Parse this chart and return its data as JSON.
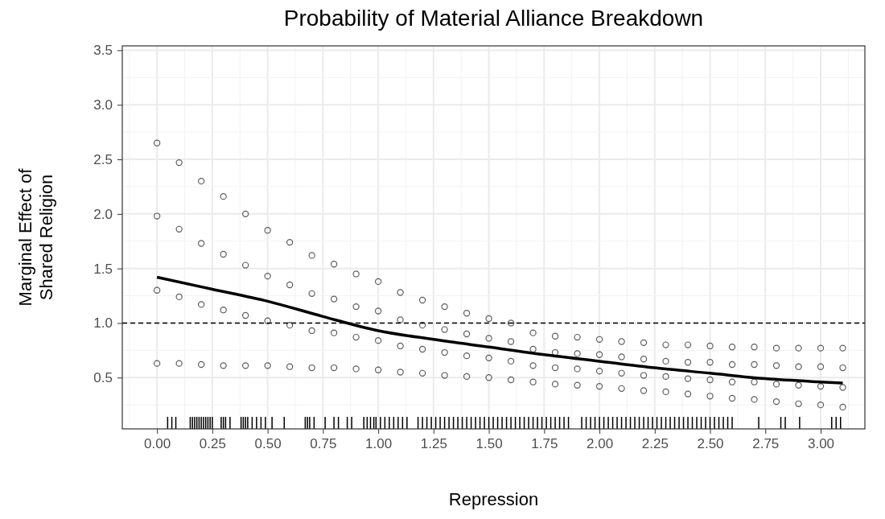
{
  "chart_data": {
    "type": "scatter",
    "title": "Probability of Material Alliance Breakdown",
    "xlabel": "Repression",
    "ylabel": "Marginal Effect of\nShared Religion",
    "xlim": [
      -0.157,
      3.2
    ],
    "ylim": [
      0.03,
      3.54
    ],
    "xticks": [
      {
        "value": 0,
        "label": "0.00"
      },
      0.25,
      {
        "value": 0.5,
        "label": "0.50"
      },
      0.75,
      {
        "value": 1,
        "label": "1.00"
      },
      1.25,
      {
        "value": 1.5,
        "label": "1.50"
      },
      1.75,
      {
        "value": 2,
        "label": "2.00"
      },
      2.25,
      {
        "value": 2.5,
        "label": "2.50"
      },
      2.75,
      {
        "value": 3,
        "label": "3.00"
      }
    ],
    "yticks": [
      0.5,
      {
        "value": 1,
        "label": "1.0"
      },
      1.5,
      {
        "value": 2,
        "label": "2.0"
      },
      2.5,
      {
        "value": 3,
        "label": "3.0"
      },
      3.5
    ],
    "grid": true,
    "marker": "circle",
    "ref_lines": [
      {
        "axis": "y",
        "value": 1,
        "line_style": "dashed",
        "color": "#000000"
      }
    ],
    "series": [
      {
        "color": "#333333",
        "x": [
          0,
          0.1,
          0.2,
          0.3,
          0.4,
          0.5,
          0.6,
          0.7,
          0.8,
          0.9,
          1,
          1.1,
          1.2,
          1.3,
          1.4,
          1.5,
          1.6,
          1.7,
          1.8,
          1.9,
          2,
          2.1,
          2.2,
          2.3,
          2.4,
          2.5,
          2.6,
          2.7,
          2.8,
          2.9,
          3,
          3.1
        ],
        "values": [
          0.63,
          0.63,
          0.62,
          0.61,
          0.61,
          0.61,
          0.6,
          0.59,
          0.59,
          0.58,
          0.57,
          0.55,
          0.54,
          0.52,
          0.51,
          0.5,
          0.48,
          0.46,
          0.44,
          0.43,
          0.42,
          0.4,
          0.38,
          0.37,
          0.35,
          0.33,
          0.31,
          0.3,
          0.28,
          0.26,
          0.25,
          0.23
        ]
      },
      {
        "color": "#333333",
        "x": [
          0,
          0.1,
          0.2,
          0.3,
          0.4,
          0.5,
          0.6,
          0.7,
          0.8,
          0.9,
          1,
          1.1,
          1.2,
          1.3,
          1.4,
          1.5,
          1.6,
          1.7,
          1.8,
          1.9,
          2,
          2.1,
          2.2,
          2.3,
          2.4,
          2.5,
          2.6,
          2.7,
          2.8,
          2.9,
          3,
          3.1
        ],
        "values": [
          1.3,
          1.24,
          1.17,
          1.12,
          1.07,
          1.02,
          0.98,
          0.93,
          0.91,
          0.87,
          0.84,
          0.79,
          0.76,
          0.73,
          0.7,
          0.68,
          0.65,
          0.61,
          0.59,
          0.58,
          0.56,
          0.54,
          0.52,
          0.51,
          0.49,
          0.48,
          0.46,
          0.46,
          0.44,
          0.43,
          0.42,
          0.41
        ]
      },
      {
        "color": "#333333",
        "x": [
          0,
          0.1,
          0.2,
          0.3,
          0.4,
          0.5,
          0.6,
          0.7,
          0.8,
          0.9,
          1,
          1.1,
          1.2,
          1.3,
          1.4,
          1.5,
          1.6,
          1.7,
          1.8,
          1.9,
          2,
          2.1,
          2.2,
          2.3,
          2.4,
          2.5,
          2.6,
          2.7,
          2.8,
          2.9,
          3,
          3.1
        ],
        "values": [
          1.98,
          1.86,
          1.73,
          1.63,
          1.53,
          1.43,
          1.35,
          1.27,
          1.22,
          1.15,
          1.11,
          1.03,
          0.98,
          0.94,
          0.9,
          0.86,
          0.83,
          0.76,
          0.73,
          0.72,
          0.71,
          0.69,
          0.67,
          0.65,
          0.64,
          0.64,
          0.62,
          0.62,
          0.61,
          0.6,
          0.6,
          0.59
        ]
      },
      {
        "color": "#333333",
        "x": [
          0,
          0.1,
          0.2,
          0.3,
          0.4,
          0.5,
          0.6,
          0.7,
          0.8,
          0.9,
          1,
          1.1,
          1.2,
          1.3,
          1.4,
          1.5,
          1.6,
          1.7,
          1.8,
          1.9,
          2,
          2.1,
          2.2,
          2.3,
          2.4,
          2.5,
          2.6,
          2.7,
          2.8,
          2.9,
          3,
          3.1
        ],
        "values": [
          2.65,
          2.47,
          2.3,
          2.16,
          2,
          1.85,
          1.74,
          1.62,
          1.54,
          1.45,
          1.38,
          1.28,
          1.21,
          1.15,
          1.09,
          1.04,
          1,
          0.91,
          0.88,
          0.87,
          0.85,
          0.83,
          0.82,
          0.8,
          0.8,
          0.79,
          0.78,
          0.78,
          0.77,
          0.77,
          0.77,
          0.77
        ]
      },
      {
        "type": "line",
        "color": "#000000",
        "line_style": "solid",
        "marker": "none",
        "x": [
          0,
          0.25,
          0.5,
          0.75,
          1,
          1.25,
          1.5,
          1.75,
          2,
          2.25,
          2.5,
          2.75,
          3,
          3.1
        ],
        "values": [
          1.42,
          1.31,
          1.2,
          1.06,
          0.93,
          0.85,
          0.78,
          0.71,
          0.65,
          0.59,
          0.54,
          0.49,
          0.46,
          0.45
        ]
      },
      {
        "type": "bar",
        "color": "#000000",
        "x": [
          0.048,
          0.067,
          0.085,
          0.15,
          0.16,
          0.17,
          0.18,
          0.19,
          0.2,
          0.21,
          0.22,
          0.23,
          0.24,
          0.25,
          0.29,
          0.3,
          0.31,
          0.33,
          0.38,
          0.39,
          0.4,
          0.41,
          0.43,
          0.45,
          0.47,
          0.49,
          0.52,
          0.575,
          0.67,
          0.68,
          0.69,
          0.71,
          0.76,
          0.8,
          0.82,
          0.86,
          0.88,
          0.935,
          0.95,
          0.965,
          0.98,
          0.99,
          1.01,
          1.03,
          1.05,
          1.07,
          1.09,
          1.11,
          1.13,
          1.18,
          1.2,
          1.22,
          1.24,
          1.26,
          1.28,
          1.3,
          1.32,
          1.34,
          1.36,
          1.38,
          1.4,
          1.42,
          1.44,
          1.46,
          1.48,
          1.5,
          1.52,
          1.54,
          1.56,
          1.58,
          1.6,
          1.62,
          1.64,
          1.66,
          1.68,
          1.7,
          1.72,
          1.74,
          1.76,
          1.78,
          1.8,
          1.82,
          1.84,
          1.86,
          1.92,
          1.94,
          1.96,
          1.98,
          2,
          2.02,
          2.04,
          2.06,
          2.08,
          2.1,
          2.12,
          2.14,
          2.16,
          2.18,
          2.2,
          2.22,
          2.24,
          2.26,
          2.28,
          2.3,
          2.32,
          2.34,
          2.36,
          2.38,
          2.4,
          2.42,
          2.44,
          2.46,
          2.48,
          2.5,
          2.52,
          2.54,
          2.56,
          2.58,
          2.6,
          2.72,
          2.82,
          2.84,
          2.905,
          3.05,
          3.07,
          3.09
        ],
        "base": [
          0.03,
          0.03,
          0.03,
          0.03,
          0.03,
          0.03,
          0.03,
          0.03,
          0.03,
          0.03,
          0.03,
          0.03,
          0.03,
          0.03,
          0.03,
          0.03,
          0.03,
          0.03,
          0.03,
          0.03,
          0.03,
          0.03,
          0.03,
          0.03,
          0.03,
          0.03,
          0.03,
          0.03,
          0.03,
          0.03,
          0.03,
          0.03,
          0.03,
          0.03,
          0.03,
          0.03,
          0.03,
          0.03,
          0.03,
          0.03,
          0.03,
          0.03,
          0.03,
          0.03,
          0.03,
          0.03,
          0.03,
          0.03,
          0.03,
          0.03,
          0.03,
          0.03,
          0.03,
          0.03,
          0.03,
          0.03,
          0.03,
          0.03,
          0.03,
          0.03,
          0.03,
          0.03,
          0.03,
          0.03,
          0.03,
          0.03,
          0.03,
          0.03,
          0.03,
          0.03,
          0.03,
          0.03,
          0.03,
          0.03,
          0.03,
          0.03,
          0.03,
          0.03,
          0.03,
          0.03,
          0.03,
          0.03,
          0.03,
          0.03,
          0.03,
          0.03,
          0.03,
          0.03,
          0.03,
          0.03,
          0.03,
          0.03,
          0.03,
          0.03,
          0.03,
          0.03,
          0.03,
          0.03,
          0.03,
          0.03,
          0.03,
          0.03,
          0.03,
          0.03,
          0.03,
          0.03,
          0.03,
          0.03,
          0.03,
          0.03,
          0.03,
          0.03,
          0.03,
          0.03,
          0.03,
          0.03,
          0.03,
          0.03,
          0.03,
          0.03,
          0.03,
          0.03,
          0.03,
          0.03,
          0.03,
          0.03
        ],
        "values": [
          0.11,
          0.11,
          0.11,
          0.11,
          0.11,
          0.11,
          0.11,
          0.11,
          0.11,
          0.11,
          0.11,
          0.11,
          0.11,
          0.11,
          0.11,
          0.11,
          0.11,
          0.11,
          0.11,
          0.11,
          0.11,
          0.11,
          0.11,
          0.11,
          0.11,
          0.11,
          0.11,
          0.11,
          0.11,
          0.11,
          0.11,
          0.11,
          0.11,
          0.11,
          0.11,
          0.11,
          0.11,
          0.11,
          0.11,
          0.11,
          0.11,
          0.11,
          0.11,
          0.11,
          0.11,
          0.11,
          0.11,
          0.11,
          0.11,
          0.11,
          0.11,
          0.11,
          0.11,
          0.11,
          0.11,
          0.11,
          0.11,
          0.11,
          0.11,
          0.11,
          0.11,
          0.11,
          0.11,
          0.11,
          0.11,
          0.11,
          0.11,
          0.11,
          0.11,
          0.11,
          0.11,
          0.11,
          0.11,
          0.11,
          0.11,
          0.11,
          0.11,
          0.11,
          0.11,
          0.11,
          0.11,
          0.11,
          0.11,
          0.11,
          0.11,
          0.11,
          0.11,
          0.11,
          0.11,
          0.11,
          0.11,
          0.11,
          0.11,
          0.11,
          0.11,
          0.11,
          0.11,
          0.11,
          0.11,
          0.11,
          0.11,
          0.11,
          0.11,
          0.11,
          0.11,
          0.11,
          0.11,
          0.11,
          0.11,
          0.11,
          0.11,
          0.11,
          0.11,
          0.11,
          0.11,
          0.11,
          0.11,
          0.11,
          0.11,
          0.11,
          0.11,
          0.11,
          0.11,
          0.11,
          0.11,
          0.11
        ]
      }
    ]
  }
}
